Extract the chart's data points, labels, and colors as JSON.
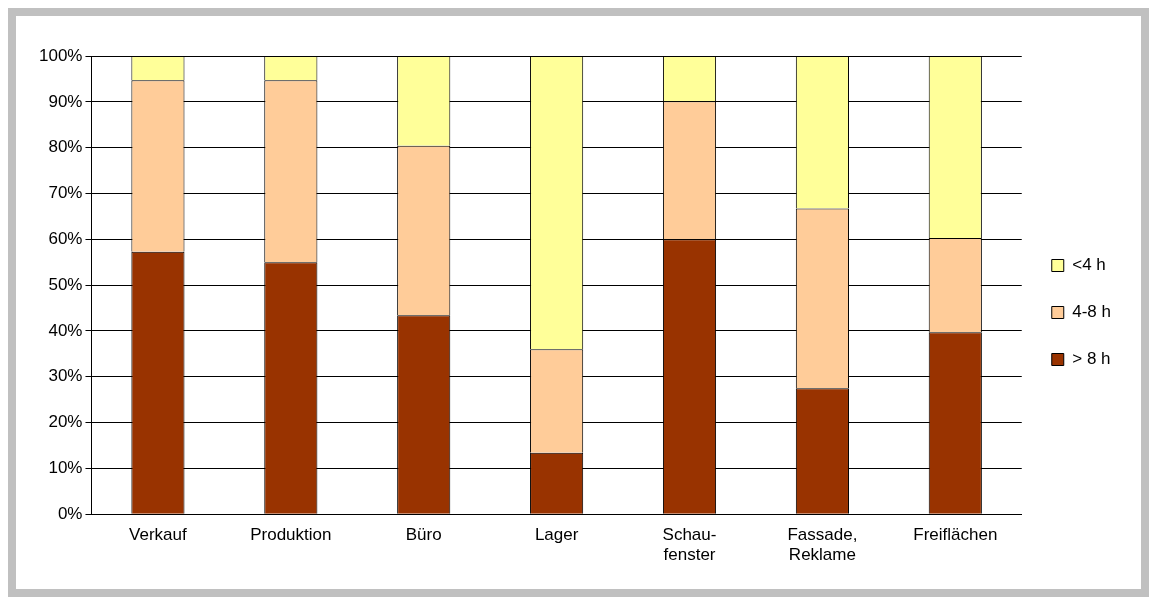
{
  "chart_data": {
    "type": "bar",
    "stacked": true,
    "categories": [
      "Verkauf",
      "Produktion",
      "Büro",
      "Lager",
      "Schau-\nfenster",
      "Fassade,\nReklame",
      "Freiflächen"
    ],
    "series": [
      {
        "name": "> 8 h",
        "color": "#993300",
        "values": [
          57.3,
          55,
          43.4,
          13.4,
          60,
          27.5,
          39.7
        ]
      },
      {
        "name": "4-8 h",
        "color": "#ffcc99",
        "values": [
          37.4,
          39.7,
          37,
          22.6,
          30.1,
          39.2,
          20.6
        ]
      },
      {
        "name": "<4 h",
        "color": "#ffff99",
        "values": [
          5.3,
          5.3,
          19.6,
          64,
          9.9,
          33.3,
          39.7
        ]
      }
    ],
    "ylim": [
      0,
      100
    ],
    "yticks": [
      {
        "value": 0,
        "label": "0%"
      },
      {
        "value": 10,
        "label": "10%"
      },
      {
        "value": 20,
        "label": "20%"
      },
      {
        "value": 30,
        "label": "30%"
      },
      {
        "value": 40,
        "label": "40%"
      },
      {
        "value": 50,
        "label": "50%"
      },
      {
        "value": 60,
        "label": "60%"
      },
      {
        "value": 70,
        "label": "70%"
      },
      {
        "value": 80,
        "label": "80%"
      },
      {
        "value": 90,
        "label": "90%"
      },
      {
        "value": 100,
        "label": "100%"
      }
    ],
    "grid": "y",
    "legend": "right"
  }
}
